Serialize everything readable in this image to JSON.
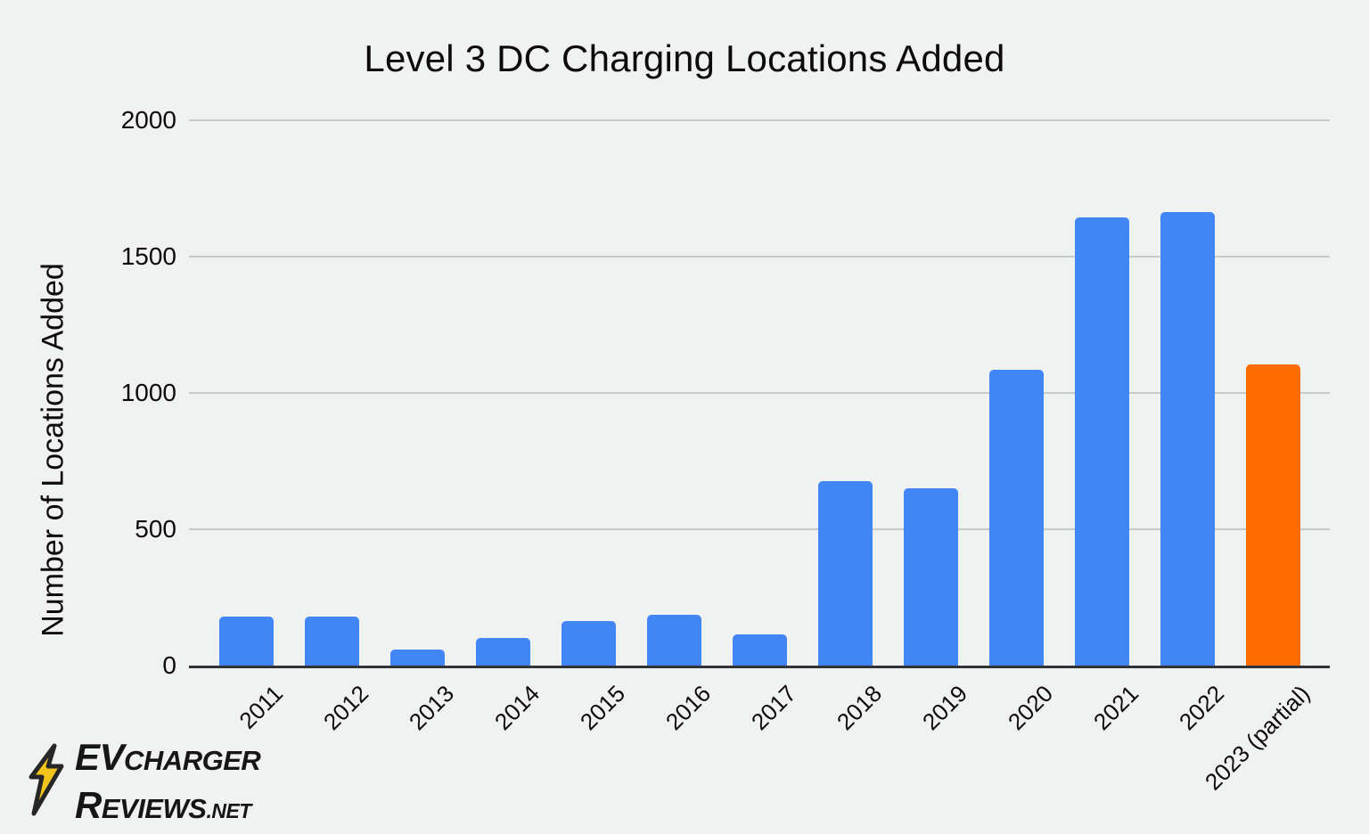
{
  "title": "Level 3 DC Charging Locations Added",
  "colors": {
    "background": "#F0F1F1",
    "bar": "#4285F4",
    "highlight": "#FF6D01",
    "grid": "#C8CACA",
    "axis": "#2F3338",
    "text": "#0B0B0B",
    "logo_bolt_fill": "#F2C51D",
    "logo_bolt_stroke": "#262626"
  },
  "chart_data": {
    "type": "bar",
    "title": "Level 3 DC Charging Locations Added",
    "xlabel": "",
    "ylabel": "Number of Locations Added",
    "categories": [
      "2011",
      "2012",
      "2013",
      "2014",
      "2015",
      "2016",
      "2017",
      "2018",
      "2019",
      "2020",
      "2021",
      "2022",
      "2023 (partial)"
    ],
    "values": [
      180,
      180,
      60,
      100,
      165,
      185,
      115,
      675,
      650,
      1085,
      1645,
      1665,
      1105
    ],
    "highlighted_category": "2023 (partial)",
    "yticks": [
      0,
      500,
      1000,
      1500,
      2000
    ],
    "ylim": [
      0,
      2000
    ],
    "grid": "horizontal",
    "legend": "none",
    "x_tick_rotation_deg": -45
  },
  "logo": {
    "line1_big": "EV",
    "line1_small": "CHARGER",
    "line2_big": "R",
    "line2_small": "EVIEWS",
    "line2_suffix": ".NET"
  }
}
